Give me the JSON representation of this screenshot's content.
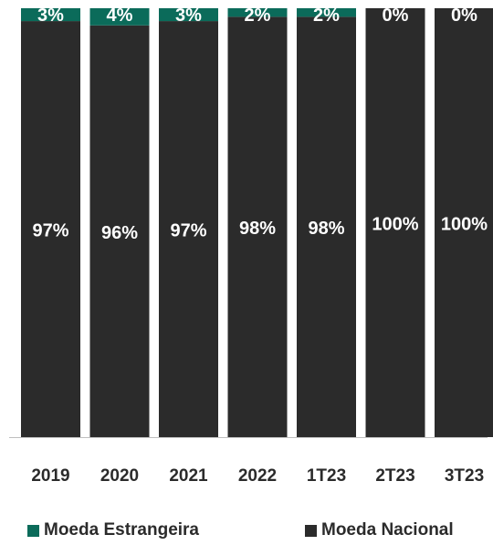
{
  "chart_data": {
    "type": "bar",
    "stacked": true,
    "normalized_percent": true,
    "categories": [
      "2019",
      "2020",
      "2021",
      "2022",
      "1T23",
      "2T23",
      "3T23"
    ],
    "series": [
      {
        "name": "Moeda Nacional",
        "values": [
          97,
          96,
          97,
          98,
          98,
          100,
          100
        ],
        "labels": [
          "97%",
          "96%",
          "97%",
          "98%",
          "98%",
          "100%",
          "100%"
        ],
        "color": "#2b2b2b"
      },
      {
        "name": "Moeda Estrangeira",
        "values": [
          3,
          4,
          3,
          2,
          2,
          0,
          0
        ],
        "labels": [
          "3%",
          "4%",
          "3%",
          "2%",
          "2%",
          "0%",
          "0%"
        ],
        "color": "#0b6b5a"
      }
    ],
    "ylim": [
      0,
      100
    ],
    "legend_position": "bottom",
    "grid": false,
    "title": "",
    "xlabel": "",
    "ylabel": ""
  },
  "legend": {
    "foreign_label": "Moeda Estrangeira",
    "national_label": "Moeda Nacional",
    "foreign_color": "#0b6b5a",
    "national_color": "#2b2b2b"
  }
}
